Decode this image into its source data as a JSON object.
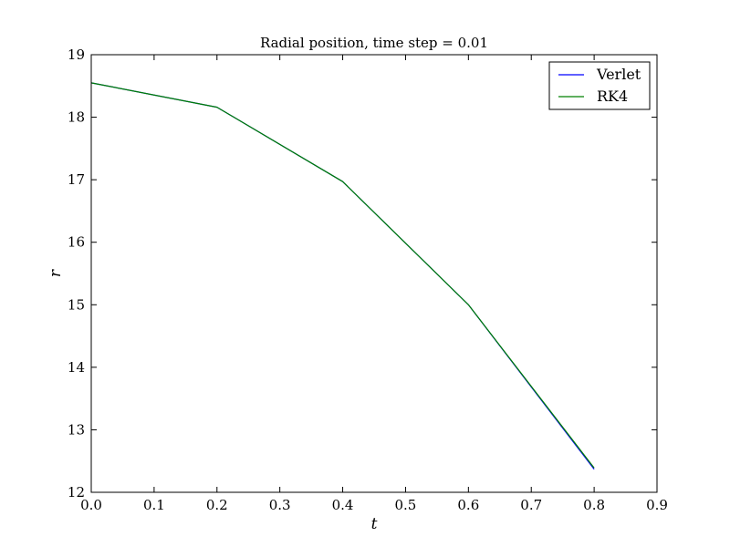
{
  "chart_data": {
    "type": "line",
    "title": "Radial position, time step = 0.01",
    "xlabel": "t",
    "ylabel": "r",
    "xlim": [
      0.0,
      0.9
    ],
    "ylim": [
      12,
      19
    ],
    "x_ticks": [
      "0.0",
      "0.1",
      "0.2",
      "0.3",
      "0.4",
      "0.5",
      "0.6",
      "0.7",
      "0.8",
      "0.9"
    ],
    "y_ticks": [
      "12",
      "13",
      "14",
      "15",
      "16",
      "17",
      "18",
      "19"
    ],
    "grid": false,
    "legend": "top-right",
    "series": [
      {
        "name": "Verlet",
        "color": "#0000ff",
        "x": [
          0.0,
          0.2,
          0.4,
          0.6,
          0.8
        ],
        "y": [
          18.55,
          18.16,
          16.97,
          15.0,
          12.37
        ]
      },
      {
        "name": "RK4",
        "color": "#008000",
        "x": [
          0.0,
          0.2,
          0.4,
          0.6,
          0.8
        ],
        "y": [
          18.55,
          18.16,
          16.97,
          15.0,
          12.39
        ]
      }
    ]
  }
}
